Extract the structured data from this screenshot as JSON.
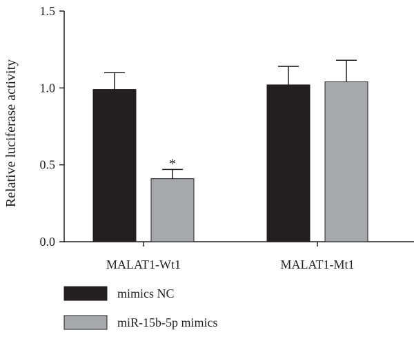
{
  "chart_data": {
    "type": "bar",
    "title": "",
    "xlabel": "",
    "ylabel": "Relative luciferase activity",
    "ylim": [
      0,
      1.5
    ],
    "yticks": [
      "0.0",
      "0.5",
      "1.0",
      "1.5"
    ],
    "ytick_values": [
      0,
      0.5,
      1.0,
      1.5
    ],
    "categories": [
      "MALAT1-Wt1",
      "MALAT1-Mt1"
    ],
    "series": [
      {
        "name": "mimics NC",
        "color": "#231f20",
        "values": [
          0.99,
          1.02
        ],
        "errors": [
          0.11,
          0.12
        ]
      },
      {
        "name": "miR-15b-5p mimics",
        "color": "#a6a8ab",
        "values": [
          0.41,
          1.04
        ],
        "errors": [
          0.06,
          0.14
        ]
      }
    ],
    "annotations": [
      {
        "text": "*",
        "category_index": 0,
        "series_index": 1
      }
    ],
    "legend_position": "bottom-left",
    "grid": false
  }
}
